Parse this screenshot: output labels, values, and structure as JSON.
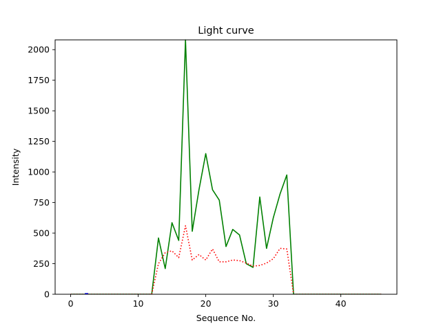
{
  "chart_data": {
    "type": "line",
    "title": "Light curve",
    "xlabel": "Sequence No.",
    "ylabel": "Intensity",
    "xlim": [
      -2.3,
      48.3
    ],
    "ylim": [
      0,
      2080
    ],
    "xticks": [
      0,
      10,
      20,
      30,
      40
    ],
    "yticks": [
      0,
      250,
      500,
      750,
      1000,
      1250,
      1500,
      1750,
      2000
    ],
    "grid": false,
    "legend": "none",
    "series": [
      {
        "color": "#008000",
        "style": "solid",
        "x": [
          0,
          1,
          2,
          3,
          4,
          5,
          6,
          7,
          8,
          9,
          10,
          11,
          12,
          13,
          14,
          15,
          16,
          17,
          18,
          19,
          20,
          21,
          22,
          23,
          24,
          25,
          26,
          27,
          28,
          29,
          30,
          31,
          32,
          33,
          34,
          35,
          36,
          37,
          38,
          39,
          40,
          41,
          42,
          43,
          44,
          45,
          46
        ],
        "y": [
          0,
          0,
          0,
          0,
          0,
          0,
          0,
          0,
          0,
          0,
          0,
          0,
          0,
          460,
          210,
          585,
          440,
          2080,
          515,
          855,
          1150,
          855,
          770,
          390,
          530,
          485,
          250,
          220,
          795,
          375,
          625,
          820,
          975,
          0,
          0,
          0,
          0,
          0,
          0,
          0,
          0,
          0,
          0,
          0,
          0,
          0,
          0
        ]
      },
      {
        "color": "#ff0000",
        "style": "dotted",
        "x": [
          0,
          1,
          2,
          3,
          4,
          5,
          6,
          7,
          8,
          9,
          10,
          11,
          12,
          13,
          14,
          15,
          16,
          17,
          18,
          19,
          20,
          21,
          22,
          23,
          24,
          25,
          26,
          27,
          28,
          29,
          30,
          31,
          32,
          33,
          34,
          35,
          36,
          37,
          38,
          39,
          40,
          41,
          42,
          43,
          44,
          45,
          46
        ],
        "y": [
          0,
          0,
          0,
          0,
          0,
          0,
          0,
          0,
          0,
          0,
          0,
          0,
          0,
          250,
          340,
          355,
          300,
          560,
          280,
          325,
          280,
          370,
          265,
          265,
          280,
          275,
          255,
          230,
          235,
          255,
          290,
          375,
          370,
          0,
          0,
          0,
          0,
          0,
          0,
          0,
          0,
          0,
          0,
          0,
          0,
          0,
          0
        ]
      },
      {
        "color": "#0000ff",
        "style": "solid",
        "x": [
          2.1,
          2.6
        ],
        "y": [
          5,
          5
        ]
      }
    ]
  }
}
